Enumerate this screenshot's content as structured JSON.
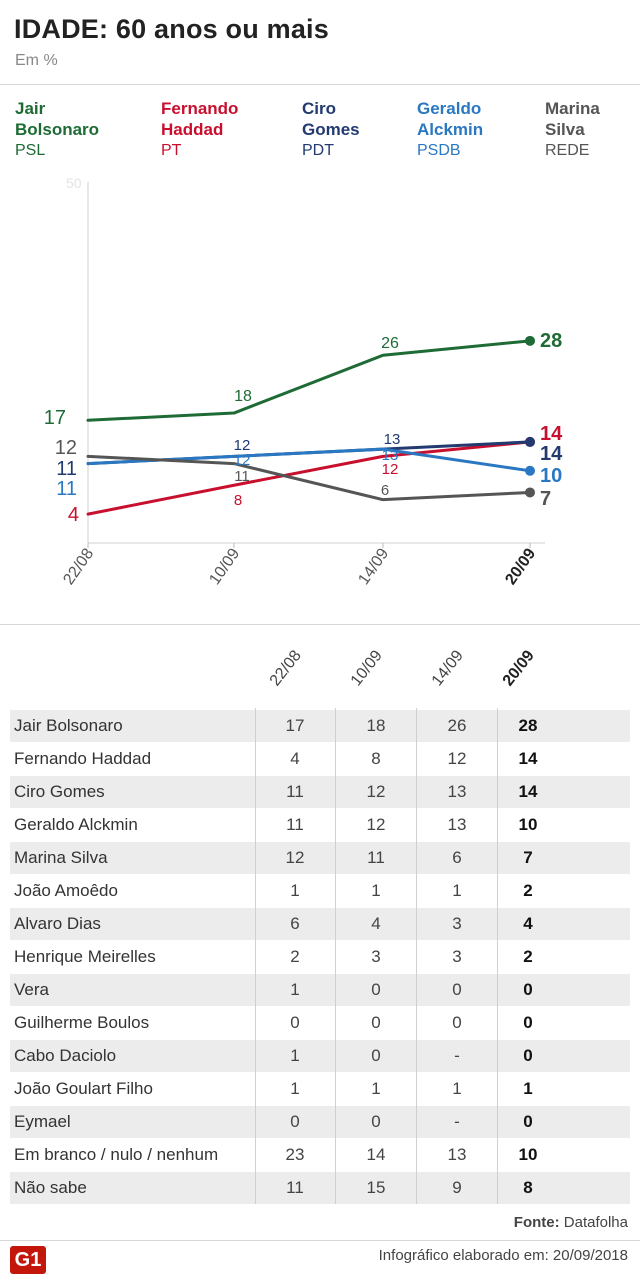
{
  "title": "IDADE: 60 anos ou mais",
  "subtitle": "Em %",
  "legend": [
    {
      "name1": "Jair",
      "name2": "Bolsonaro",
      "party": "PSL",
      "color": "#1e6b35"
    },
    {
      "name1": "Fernando",
      "name2": "Haddad",
      "party": "PT",
      "color": "#c8102e"
    },
    {
      "name1": "Ciro",
      "name2": "Gomes",
      "party": "PDT",
      "color": "#223a70"
    },
    {
      "name1": "Geraldo",
      "name2": "Alckmin",
      "party": "PSDB",
      "color": "#2a78c2"
    },
    {
      "name1": "Marina",
      "name2": "Silva",
      "party": "REDE",
      "color": "#555555"
    }
  ],
  "chart_data": {
    "type": "line",
    "x": [
      "22/08",
      "10/09",
      "14/09",
      "20/09"
    ],
    "ylim": [
      0,
      50
    ],
    "y_tick_label": "50",
    "series": [
      {
        "name": "Jair Bolsonaro",
        "color": "#1e6b35",
        "values": [
          17,
          18,
          26,
          28
        ]
      },
      {
        "name": "Fernando Haddad",
        "color": "#c8102e",
        "values": [
          4,
          8,
          12,
          14
        ]
      },
      {
        "name": "Ciro Gomes",
        "color": "#223a70",
        "values": [
          11,
          12,
          13,
          14
        ]
      },
      {
        "name": "Geraldo Alckmin",
        "color": "#2a78c2",
        "values": [
          11,
          12,
          13,
          10
        ]
      },
      {
        "name": "Marina Silva",
        "color": "#555555",
        "values": [
          12,
          11,
          6,
          7
        ]
      }
    ]
  },
  "table": {
    "columns": [
      "22/08",
      "10/09",
      "14/09",
      "20/09"
    ],
    "rows": [
      {
        "name": "Jair Bolsonaro",
        "values": [
          "17",
          "18",
          "26",
          "28"
        ]
      },
      {
        "name": "Fernando Haddad",
        "values": [
          "4",
          "8",
          "12",
          "14"
        ]
      },
      {
        "name": "Ciro Gomes",
        "values": [
          "11",
          "12",
          "13",
          "14"
        ]
      },
      {
        "name": "Geraldo Alckmin",
        "values": [
          "11",
          "12",
          "13",
          "10"
        ]
      },
      {
        "name": "Marina Silva",
        "values": [
          "12",
          "11",
          "6",
          "7"
        ]
      },
      {
        "name": "João Amoêdo",
        "values": [
          "1",
          "1",
          "1",
          "2"
        ]
      },
      {
        "name": "Alvaro Dias",
        "values": [
          "6",
          "4",
          "3",
          "4"
        ]
      },
      {
        "name": "Henrique Meirelles",
        "values": [
          "2",
          "3",
          "3",
          "2"
        ]
      },
      {
        "name": "Vera",
        "values": [
          "1",
          "0",
          "0",
          "0"
        ]
      },
      {
        "name": "Guilherme Boulos",
        "values": [
          "0",
          "0",
          "0",
          "0"
        ]
      },
      {
        "name": "Cabo Daciolo",
        "values": [
          "1",
          "0",
          "-",
          "0"
        ]
      },
      {
        "name": "João Goulart Filho",
        "values": [
          "1",
          "1",
          "1",
          "1"
        ]
      },
      {
        "name": "Eymael",
        "values": [
          "0",
          "0",
          "-",
          "0"
        ]
      },
      {
        "name": "Em branco / nulo / nenhum",
        "values": [
          "23",
          "14",
          "13",
          "10"
        ]
      },
      {
        "name": "Não sabe",
        "values": [
          "11",
          "15",
          "9",
          "8"
        ]
      }
    ]
  },
  "source_label": "Fonte:",
  "source_value": "Datafolha",
  "credit": "Infográfico elaborado em: 20/09/2018",
  "logo_text": "G1"
}
